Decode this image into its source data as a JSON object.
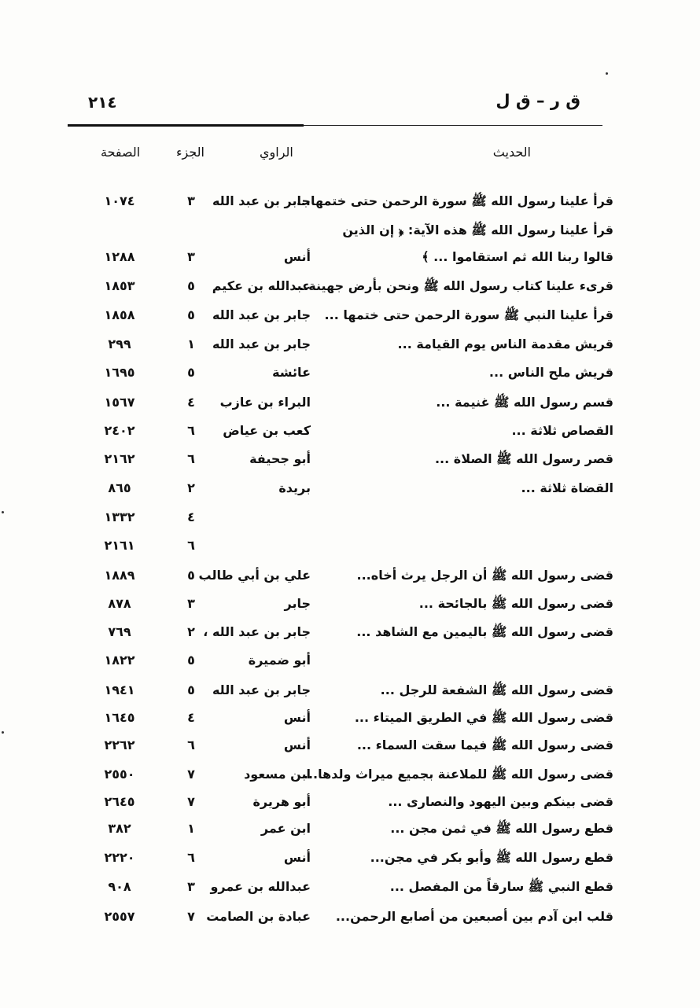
{
  "header": {
    "page_number": "٢١٤",
    "running_head": "ق ر – ق ل"
  },
  "columns": {
    "hadith": "الحديث",
    "narrator": "الراوي",
    "juz": "الجزء",
    "page": "الصفحة"
  },
  "rows": [
    {
      "hadith": "قرأ علينا رسول الله ﷺ سورة الرحمن حتى ختمها...",
      "narrator": "جابر بن عبد الله",
      "juz": "٣",
      "page": "١٠٧٤"
    },
    {
      "hadith": "قرأ علينا رسول الله ﷺ هذه الآية: ﴿ إن الذين",
      "narrator": "",
      "juz": "",
      "page": ""
    },
    {
      "hadith": "قالوا ربنا الله ثم استقاموا ... ﴾",
      "narrator": "أنس",
      "juz": "٣",
      "page": "١٢٨٨"
    },
    {
      "hadith": "قرىء علينا كتاب رسول الله ﷺ ونحن بأرض جهينة...",
      "narrator": "عبدالله بن عكيم",
      "juz": "٥",
      "page": "١٨٥٣"
    },
    {
      "hadith": "قرأ علينا النبي ﷺ سورة الرحمن حتى ختمها ...",
      "narrator": "جابر بن عبد الله",
      "juz": "٥",
      "page": "١٨٥٨"
    },
    {
      "hadith": "قريش مقدمة الناس يوم القيامة ...",
      "narrator": "جابر بن عبد الله",
      "juz": "١",
      "page": "٢٩٩"
    },
    {
      "hadith": "قريش ملح الناس ...",
      "narrator": "عائشة",
      "juz": "٥",
      "page": "١٦٩٥"
    },
    {
      "hadith": "قسم رسول الله ﷺ غنيمة ...",
      "narrator": "البراء بن عازب",
      "juz": "٤",
      "page": "١٥٦٧"
    },
    {
      "hadith": "القصاص ثلاثة ...",
      "narrator": "كعب بن عياض",
      "juz": "٦",
      "page": "٢٤٠٢"
    },
    {
      "hadith": "قصر رسول الله ﷺ الصلاة ...",
      "narrator": "أبو جحيفة",
      "juz": "٦",
      "page": "٢١٦٢"
    },
    {
      "hadith": "القضاة ثلاثة ...",
      "narrator": "بريدة",
      "juz": "٢",
      "page": "٨٦٥"
    },
    {
      "hadith": "",
      "narrator": "",
      "juz": "٤",
      "page": "١٣٣٢"
    },
    {
      "hadith": "",
      "narrator": "",
      "juz": "٦",
      "page": "٢١٦١"
    },
    {
      "hadith": "قضى رسول الله ﷺ أن الرجل يرث أخاه...",
      "narrator": "علي بن أبي طالب",
      "juz": "٥",
      "page": "١٨٨٩"
    },
    {
      "hadith": "قضى رسول الله ﷺ بالجائحة ...",
      "narrator": "جابر",
      "juz": "٣",
      "page": "٨٧٨"
    },
    {
      "hadith": "قضى رسول الله ﷺ باليمين مع الشاهد ...",
      "narrator": "جابر بن عبد الله ،",
      "juz": "٢",
      "page": "٧٦٩"
    },
    {
      "hadith": "",
      "narrator": "أبو ضميرة",
      "juz": "٥",
      "page": "١٨٢٢"
    },
    {
      "hadith": "قضى رسول الله ﷺ الشفعة للرجل ...",
      "narrator": "جابر بن عبد الله",
      "juz": "٥",
      "page": "١٩٤١"
    },
    {
      "hadith": "قضى رسول الله ﷺ في الطريق الميتاء ...",
      "narrator": "أنس",
      "juz": "٤",
      "page": "١٦٤٥"
    },
    {
      "hadith": "قضى رسول الله ﷺ فيما سقت السماء ...",
      "narrator": "أنس",
      "juz": "٦",
      "page": "٢٢٦٢"
    },
    {
      "hadith": "قضى رسول الله ﷺ للملاعنة بجميع ميراث ولدها...",
      "narrator": "ابن مسعود",
      "juz": "٧",
      "page": "٢٥٥٠"
    },
    {
      "hadith": "قضى بينكم وبين اليهود والنصارى ...",
      "narrator": "أبو هريرة",
      "juz": "٧",
      "page": "٢٦٤٥"
    },
    {
      "hadith": "قطع رسول الله ﷺ في ثمن مجن ...",
      "narrator": "ابن عمر",
      "juz": "١",
      "page": "٣٨٢"
    },
    {
      "hadith": "قطع رسول الله ﷺ وأبو بكر في مجن...",
      "narrator": "أنس",
      "juz": "٦",
      "page": "٢٢٢٠"
    },
    {
      "hadith": "قطع النبي ﷺ سارقاً من المفصل ...",
      "narrator": "عبدالله بن عمرو",
      "juz": "٣",
      "page": "٩٠٨"
    },
    {
      "hadith": "قلب ابن آدم بين أصبعين من أصابع الرحمن...",
      "narrator": "عبادة بن الصامت",
      "juz": "٧",
      "page": "٢٥٥٧"
    }
  ]
}
